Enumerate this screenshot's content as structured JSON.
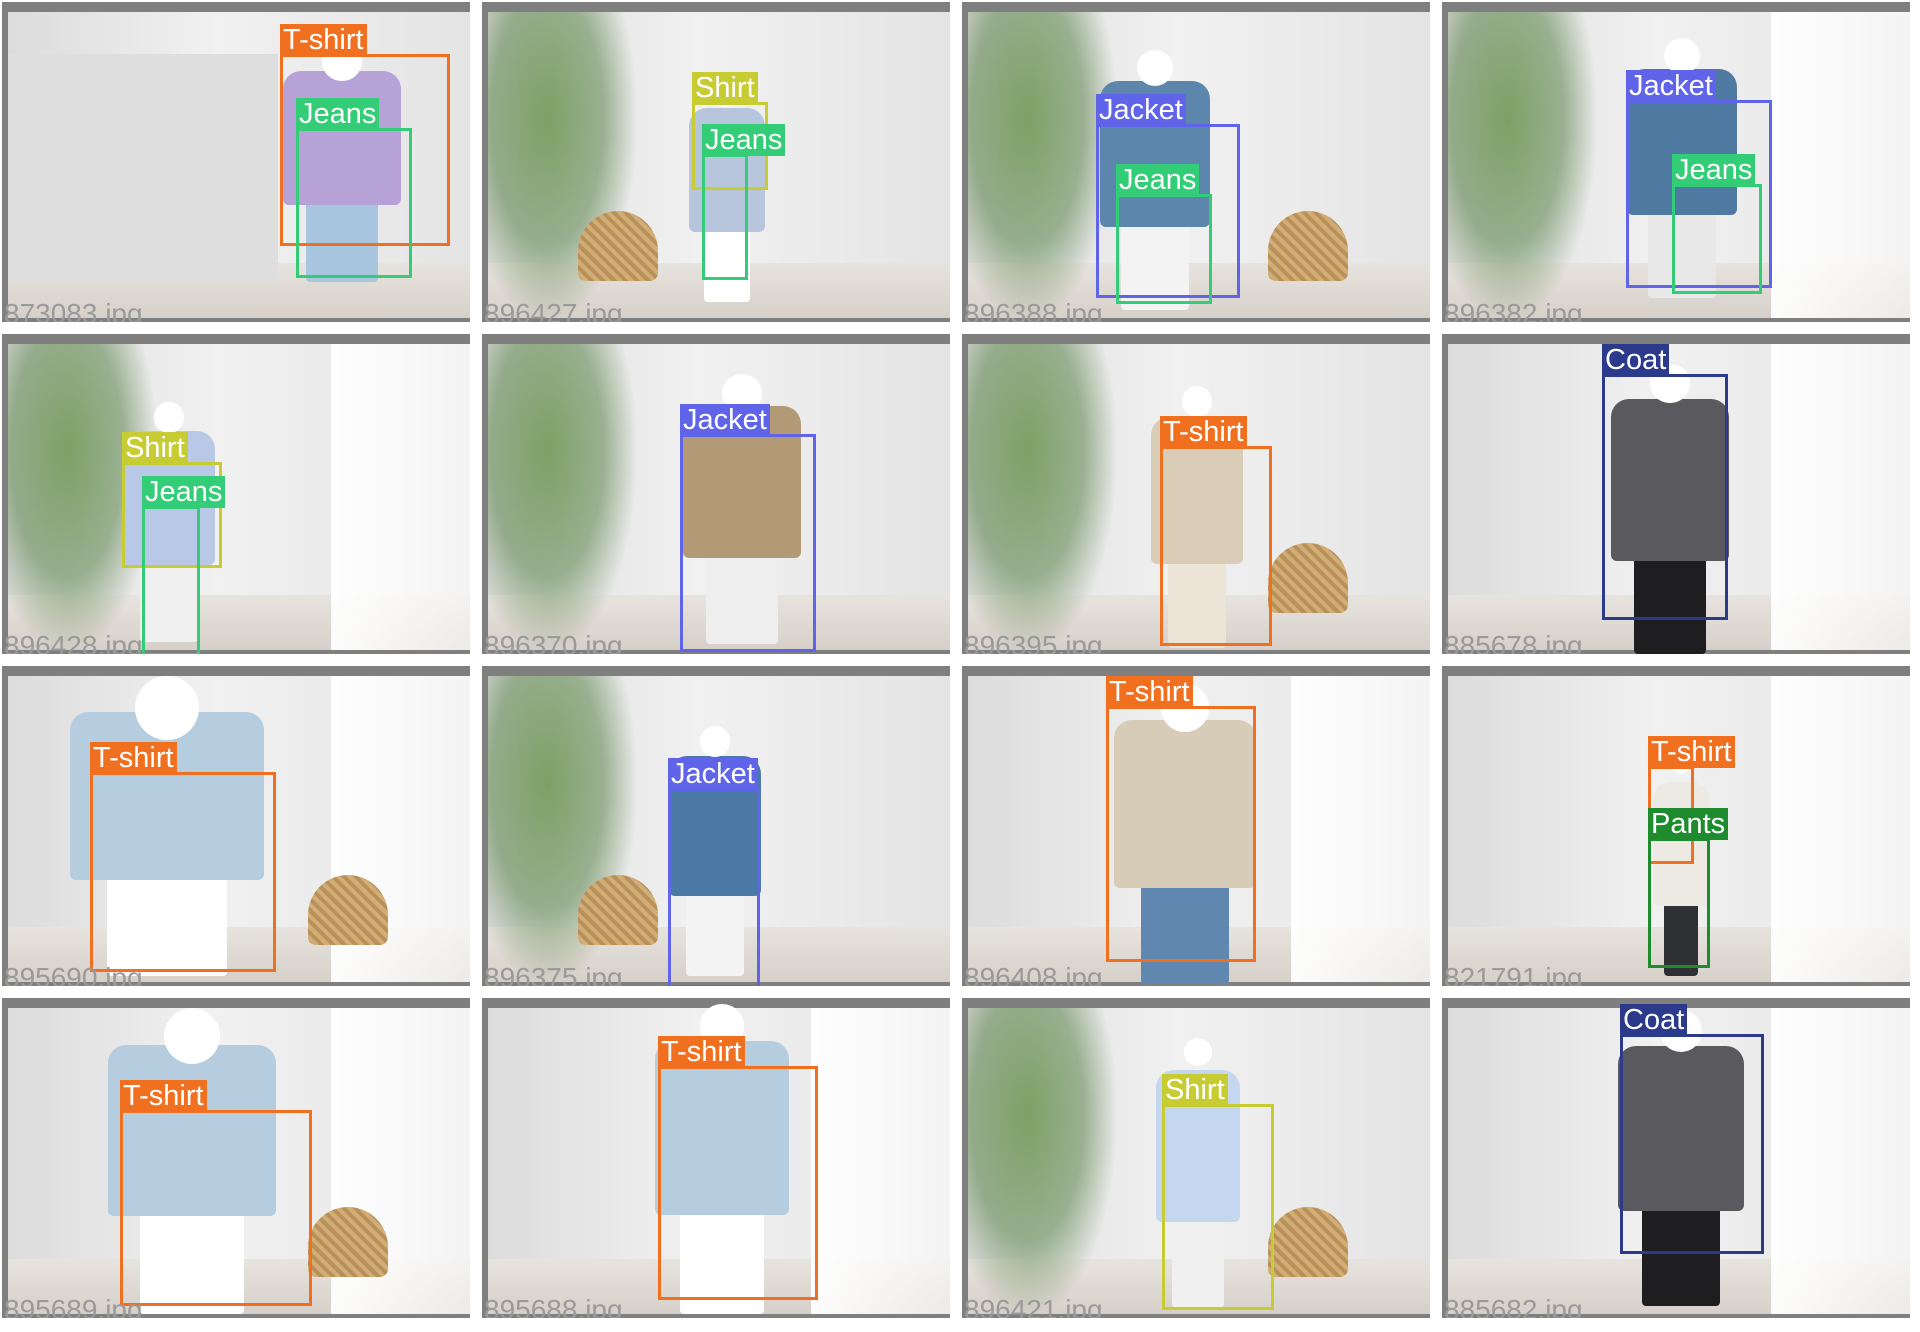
{
  "colors": {
    "tshirt": "#f07020",
    "jeans": "#33cc77",
    "shirt": "#c8cc33",
    "jacket": "#6064e8",
    "coat": "#2c3a8c",
    "pants": "#1e8c2e"
  },
  "tiles": [
    {
      "file": "873083.jpg",
      "labels": [
        {
          "text": "T-shirt",
          "color": "#f07020"
        },
        {
          "text": "Jeans",
          "color": "#33cc77"
        }
      ]
    },
    {
      "file": "896427.jpg",
      "labels": [
        {
          "text": "Shirt",
          "color": "#c8cc33"
        },
        {
          "text": "Jeans",
          "color": "#33cc77"
        }
      ]
    },
    {
      "file": "896388.jpg",
      "labels": [
        {
          "text": "Jacket",
          "color": "#6064e8"
        },
        {
          "text": "Jeans",
          "color": "#33cc77"
        }
      ]
    },
    {
      "file": "896382.jpg",
      "labels": [
        {
          "text": "Jacket",
          "color": "#6064e8"
        },
        {
          "text": "Jeans",
          "color": "#33cc77"
        }
      ]
    },
    {
      "file": "896428.jpg",
      "labels": [
        {
          "text": "Shirt",
          "color": "#c8cc33"
        },
        {
          "text": "Jeans",
          "color": "#33cc77"
        }
      ]
    },
    {
      "file": "896370.jpg",
      "labels": [
        {
          "text": "Jacket",
          "color": "#6064e8"
        }
      ]
    },
    {
      "file": "896395.jpg",
      "labels": [
        {
          "text": "T-shirt",
          "color": "#f07020"
        }
      ]
    },
    {
      "file": "885678.jpg",
      "labels": [
        {
          "text": "Coat",
          "color": "#2c3a8c"
        }
      ]
    },
    {
      "file": "895690.jpg",
      "labels": [
        {
          "text": "T-shirt",
          "color": "#f07020"
        }
      ]
    },
    {
      "file": "896375.jpg",
      "labels": [
        {
          "text": "Jacket",
          "color": "#6064e8"
        }
      ]
    },
    {
      "file": "896408.jpg",
      "labels": [
        {
          "text": "T-shirt",
          "color": "#f07020"
        }
      ]
    },
    {
      "file": "821791.jpg",
      "labels": [
        {
          "text": "T-shirt",
          "color": "#f07020"
        },
        {
          "text": "Pants",
          "color": "#1e8c2e"
        }
      ]
    },
    {
      "file": "895689.jpg",
      "labels": [
        {
          "text": "T-shirt",
          "color": "#f07020"
        }
      ]
    },
    {
      "file": "895688.jpg",
      "labels": [
        {
          "text": "T-shirt",
          "color": "#f07020"
        }
      ]
    },
    {
      "file": "896421.jpg",
      "labels": [
        {
          "text": "Shirt",
          "color": "#c8cc33"
        }
      ]
    },
    {
      "file": "885682.jpg",
      "labels": [
        {
          "text": "Coat",
          "color": "#2c3a8c"
        }
      ]
    }
  ]
}
